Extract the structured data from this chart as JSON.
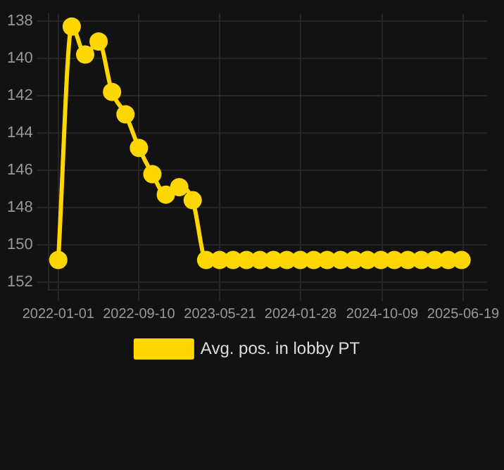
{
  "chart_data": {
    "type": "line",
    "x": [
      "2022-01-01",
      "2022-02-12",
      "2022-03-26",
      "2022-05-07",
      "2022-06-18",
      "2022-07-30",
      "2022-09-10",
      "2022-10-22",
      "2022-12-03",
      "2023-01-14",
      "2023-02-25",
      "2023-04-08",
      "2023-05-20",
      "2023-07-01",
      "2023-08-12",
      "2023-09-23",
      "2023-11-04",
      "2023-12-16",
      "2024-01-27",
      "2024-03-09",
      "2024-04-20",
      "2024-06-01",
      "2024-07-13",
      "2024-08-24",
      "2024-10-05",
      "2024-11-16",
      "2024-12-28",
      "2025-02-08",
      "2025-03-22",
      "2025-05-03",
      "2025-06-14"
    ],
    "series": [
      {
        "name": "Avg. pos. in lobby PT",
        "color": "#ffd700",
        "values": [
          150.8,
          138.3,
          139.8,
          139.1,
          141.8,
          143.0,
          144.8,
          146.2,
          147.3,
          146.9,
          147.6,
          150.8,
          150.8,
          150.8,
          150.8,
          150.8,
          150.8,
          150.8,
          150.8,
          150.8,
          150.8,
          150.8,
          150.8,
          150.8,
          150.8,
          150.8,
          150.8,
          150.8,
          150.8,
          150.8,
          150.8
        ]
      }
    ],
    "xlim": [
      "2021-12-01",
      "2025-09-01"
    ],
    "xticks": [
      "2022-01-01",
      "2022-09-10",
      "2023-05-21",
      "2024-01-28",
      "2024-10-09",
      "2025-06-19"
    ],
    "ylim": [
      152.4,
      137.6
    ],
    "yticks": [
      138,
      140,
      142,
      144,
      146,
      148,
      150,
      152
    ],
    "grid": true,
    "legend": "bottom",
    "marker": "circle",
    "line_style": "solid"
  }
}
